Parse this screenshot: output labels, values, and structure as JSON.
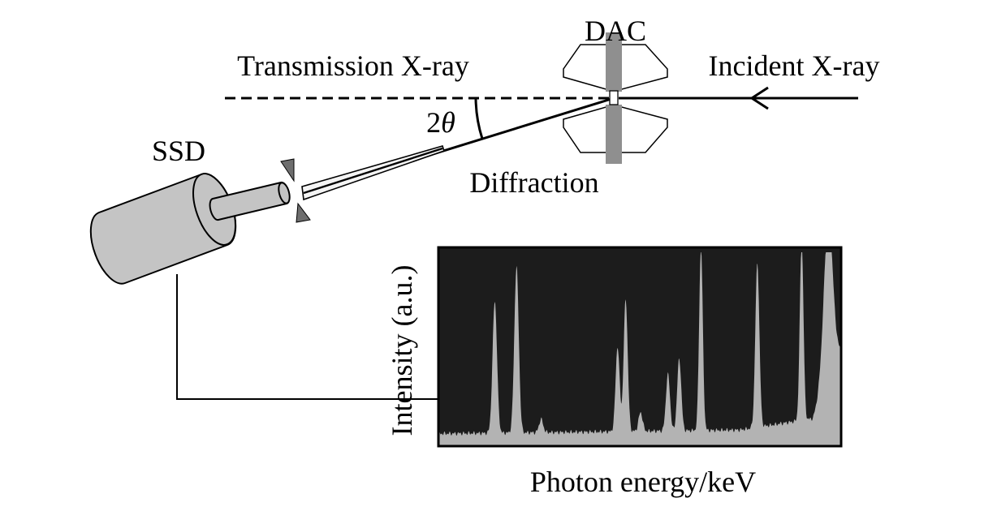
{
  "labels": {
    "dac": "DAC",
    "transmission": "Transmission X-ray",
    "incident": "Incident X-ray",
    "two_theta_prefix": "2",
    "two_theta_symbol": "θ",
    "ssd": "SSD",
    "diffraction": "Diffraction",
    "y_axis": "Intensity (a.u.)",
    "x_axis": "Photon energy/keV"
  },
  "colors": {
    "line": "#000000",
    "plot_bg": "#1c1c1c",
    "spectrum_fill": "#b3b3b3",
    "detector_fill": "#c4c4c4",
    "diamond_fill": "#ffffff",
    "gasket_fill": "#8f8f8f",
    "collimator_fill": "#6e6e6e"
  },
  "chart_data": {
    "type": "area",
    "title": "",
    "xlabel": "Photon energy/keV",
    "ylabel": "Intensity (a.u.)",
    "xlim": [
      0,
      100
    ],
    "ylim": [
      0,
      100
    ],
    "ticks_shown": false,
    "baseline": 4,
    "background_rise": [
      {
        "x": 0,
        "y": 4
      },
      {
        "x": 40,
        "y": 5
      },
      {
        "x": 75,
        "y": 6
      },
      {
        "x": 93,
        "y": 12
      },
      {
        "x": 97,
        "y": 40
      },
      {
        "x": 100,
        "y": 48
      }
    ],
    "peaks": [
      {
        "x": 14.0,
        "height": 70,
        "width": 0.55
      },
      {
        "x": 19.4,
        "height": 88,
        "width": 0.55
      },
      {
        "x": 25.5,
        "height": 7,
        "width": 0.5
      },
      {
        "x": 44.5,
        "height": 45,
        "width": 0.5
      },
      {
        "x": 46.5,
        "height": 70,
        "width": 0.5
      },
      {
        "x": 50.2,
        "height": 10,
        "width": 0.5
      },
      {
        "x": 57.0,
        "height": 30,
        "width": 0.5
      },
      {
        "x": 59.8,
        "height": 38,
        "width": 0.5
      },
      {
        "x": 65.2,
        "height": 97,
        "width": 0.45
      },
      {
        "x": 79.2,
        "height": 87,
        "width": 0.5
      },
      {
        "x": 90.2,
        "height": 95,
        "width": 0.45
      },
      {
        "x": 96.8,
        "height": 80,
        "width": 1.1
      }
    ]
  }
}
